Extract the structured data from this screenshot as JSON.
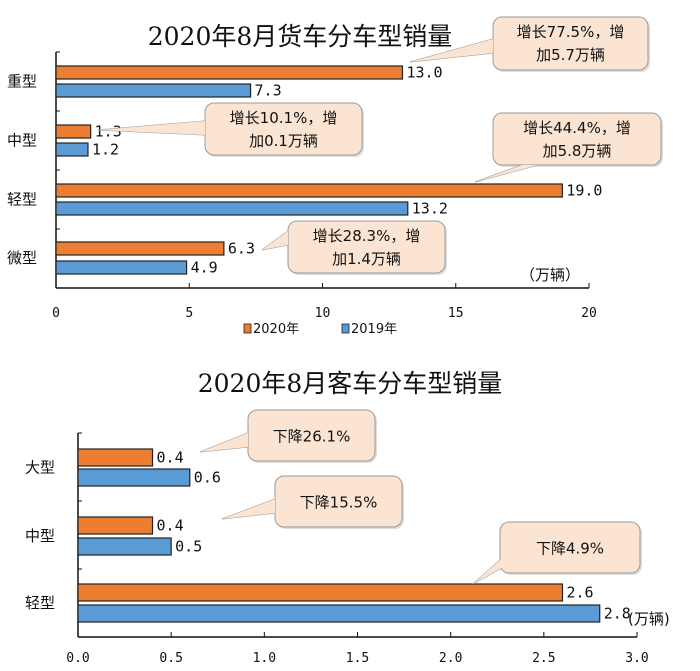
{
  "chart_data": [
    {
      "type": "bar",
      "orientation": "horizontal",
      "title": "2020年8月货车分车型销量",
      "categories": [
        "重型",
        "中型",
        "轻型",
        "微型"
      ],
      "series": [
        {
          "name": "2020年",
          "values": [
            13.0,
            1.3,
            19.0,
            6.3
          ],
          "labels": [
            "13.0",
            "1.3",
            "19.0",
            "6.3"
          ],
          "color": "#ED7D31"
        },
        {
          "name": "2019年",
          "values": [
            7.3,
            1.2,
            13.2,
            4.9
          ],
          "labels": [
            "7.3",
            "1.2",
            "13.2",
            "4.9"
          ],
          "color": "#5B9BD5"
        }
      ],
      "annotations": [
        [
          "增长77.5%，增",
          "加5.7万辆"
        ],
        [
          "增长10.1%，增",
          "加0.1万辆"
        ],
        [
          "增长44.4%，增",
          "加5.8万辆"
        ],
        [
          "增长28.3%，增",
          "加1.4万辆"
        ]
      ],
      "unit": "（万辆）",
      "xlim": [
        0,
        20
      ],
      "xticks": [
        "0",
        "5",
        "10",
        "15",
        "20"
      ],
      "legend": "bottom"
    },
    {
      "type": "bar",
      "orientation": "horizontal",
      "title": "2020年8月客车分车型销量",
      "categories": [
        "大型",
        "中型",
        "轻型"
      ],
      "series": [
        {
          "name": "2020年",
          "values": [
            0.4,
            0.4,
            2.6
          ],
          "labels": [
            "0.4",
            "0.4",
            "2.6"
          ],
          "color": "#ED7D31"
        },
        {
          "name": "2019年",
          "values": [
            0.6,
            0.5,
            2.8
          ],
          "labels": [
            "0.6",
            "0.5",
            "2.8"
          ],
          "color": "#5B9BD5"
        }
      ],
      "annotations": [
        [
          "下降26.1%"
        ],
        [
          "下降15.5%"
        ],
        [
          "下降4.9%"
        ]
      ],
      "unit": "(万辆)",
      "xlim": [
        0,
        3.0
      ],
      "xticks": [
        "0.0",
        "0.5",
        "1.0",
        "1.5",
        "2.0",
        "2.5",
        "3.0"
      ]
    }
  ]
}
